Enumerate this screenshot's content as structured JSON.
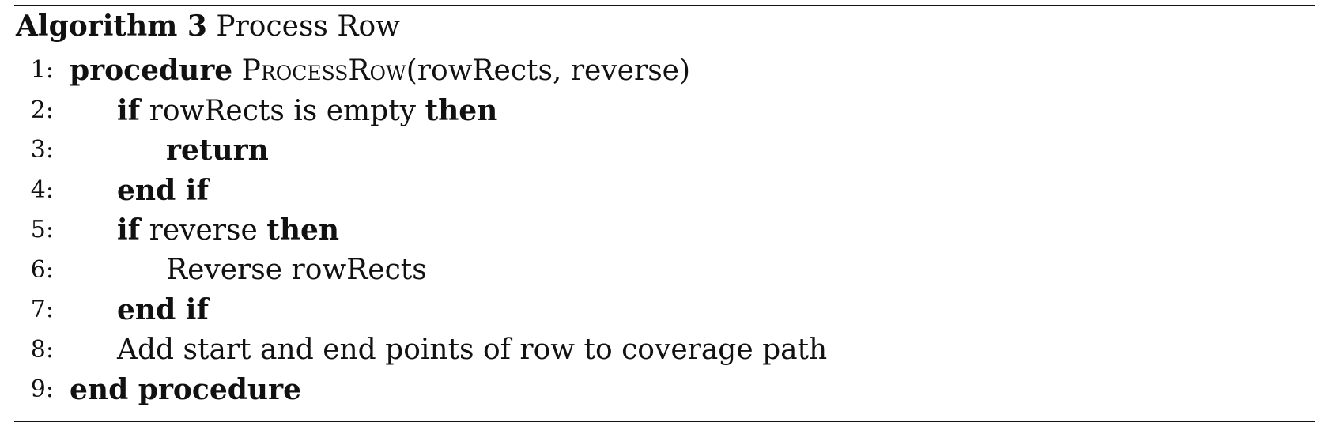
{
  "algorithm": {
    "label": "Algorithm 3",
    "title": "Process Row",
    "lines": [
      {
        "num": "1:",
        "parts": [
          {
            "t": "procedure",
            "kw": true
          },
          {
            "t": " "
          },
          {
            "t": "ProcessRow",
            "sc": true
          },
          {
            "t": "(rowRects, reverse)"
          }
        ]
      },
      {
        "num": "2:",
        "parts": [
          {
            "t": "if",
            "kw": true
          },
          {
            "t": " rowRects is empty "
          },
          {
            "t": "then",
            "kw": true
          }
        ]
      },
      {
        "num": "3:",
        "parts": [
          {
            "t": "return",
            "kw": true
          }
        ]
      },
      {
        "num": "4:",
        "parts": [
          {
            "t": "end if",
            "kw": true
          }
        ]
      },
      {
        "num": "5:",
        "parts": [
          {
            "t": "if",
            "kw": true
          },
          {
            "t": " reverse "
          },
          {
            "t": "then",
            "kw": true
          }
        ]
      },
      {
        "num": "6:",
        "parts": [
          {
            "t": "Reverse rowRects"
          }
        ]
      },
      {
        "num": "7:",
        "parts": [
          {
            "t": "end if",
            "kw": true
          }
        ]
      },
      {
        "num": "8:",
        "parts": [
          {
            "t": "Add start and end points of row to coverage path"
          }
        ]
      },
      {
        "num": "9:",
        "parts": [
          {
            "t": "end procedure",
            "kw": true
          }
        ]
      }
    ]
  }
}
